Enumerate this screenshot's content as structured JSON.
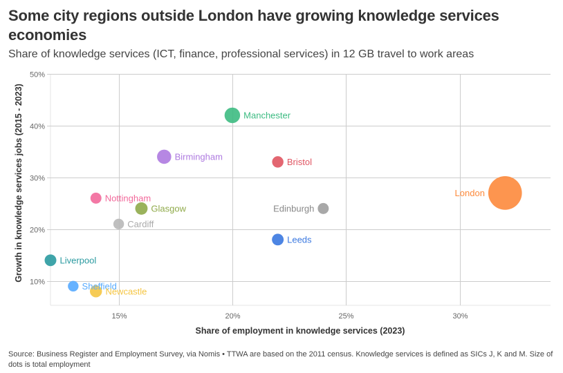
{
  "header": {
    "title": "Some city regions outside London have growing knowledge services economies",
    "subtitle": "Share of knowledge services (ICT, finance, professional services) in 12 GB travel to work areas"
  },
  "footer": {
    "source": "Source: Business Register and Employment Survey, via Nomis • TTWA are based on the 2011 census. Knowledge services is defined as SICs J, K and M. Size of dots is total employment"
  },
  "chart_data": {
    "type": "scatter",
    "title": "Some city regions outside London have growing knowledge services economies",
    "subtitle": "Share of knowledge services (ICT, finance, professional services) in 12 GB travel to work areas",
    "xlabel": "Share of employment in knowledge services (2023)",
    "ylabel": "Growth in knowledge services jobs (2015 - 2023)",
    "xlim": [
      12,
      34
    ],
    "ylim": [
      5.3,
      50
    ],
    "x_ticks": [
      15,
      20,
      25,
      30
    ],
    "x_tick_labels": [
      "15%",
      "20%",
      "25%",
      "30%"
    ],
    "y_ticks": [
      10,
      20,
      30,
      40,
      50
    ],
    "y_tick_labels": [
      "10%",
      "20%",
      "30%",
      "40%",
      "50%"
    ],
    "grid": true,
    "size_note": "Size of dots is total employment",
    "points": [
      {
        "name": "Manchester",
        "x": 20,
        "y": 42,
        "size": 3,
        "color": "#3dbb82",
        "label_side": "right"
      },
      {
        "name": "Birmingham",
        "x": 17,
        "y": 34,
        "size": 2.5,
        "color": "#ae7ae0",
        "label_side": "right"
      },
      {
        "name": "Bristol",
        "x": 22,
        "y": 33,
        "size": 1.6,
        "color": "#e05562",
        "label_side": "right"
      },
      {
        "name": "London",
        "x": 32,
        "y": 27,
        "size": 14,
        "color": "#fd8a3c",
        "label_side": "left"
      },
      {
        "name": "Nottingham",
        "x": 14,
        "y": 26,
        "size": 1.5,
        "color": "#f2699b",
        "label_side": "right"
      },
      {
        "name": "Glasgow",
        "x": 16,
        "y": 24,
        "size": 1.9,
        "color": "#8faa4a",
        "label_side": "right"
      },
      {
        "name": "Edinburgh",
        "x": 24,
        "y": 24,
        "size": 1.5,
        "color": "#9e9e9e",
        "label_side": "left"
      },
      {
        "name": "Cardiff",
        "x": 15,
        "y": 21,
        "size": 1.4,
        "color": "#b8b8b8",
        "label_side": "right"
      },
      {
        "name": "Leeds",
        "x": 22,
        "y": 18,
        "size": 1.7,
        "color": "#3a78e0",
        "label_side": "right"
      },
      {
        "name": "Liverpool",
        "x": 12,
        "y": 14,
        "size": 1.7,
        "color": "#2a9aa0",
        "label_side": "right"
      },
      {
        "name": "Sheffield",
        "x": 13,
        "y": 9,
        "size": 1.4,
        "color": "#55aaff",
        "label_side": "right"
      },
      {
        "name": "Newcastle",
        "x": 14,
        "y": 8,
        "size": 1.8,
        "color": "#f5c542",
        "label_side": "right"
      }
    ]
  }
}
